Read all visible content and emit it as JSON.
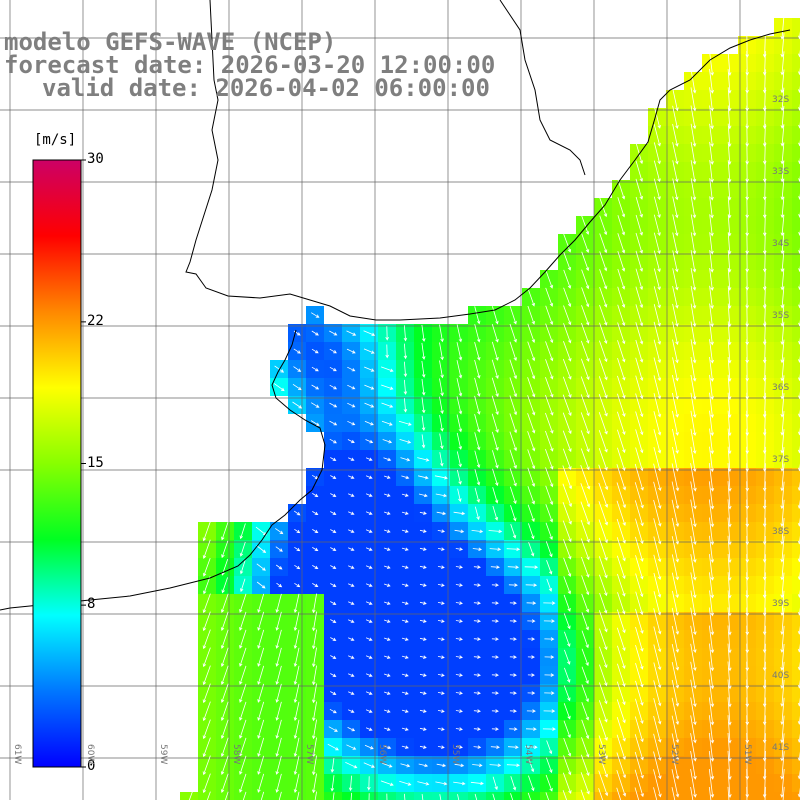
{
  "titles": {
    "line1": "modelo GEFS-WAVE (NCEP)",
    "line2": "forecast date: 2026-03-20 12:00:00",
    "line3": "valid date: 2026-04-02 06:00:00"
  },
  "colorbar": {
    "unit": "[m/s]",
    "ticks": [
      {
        "label": "30",
        "value": 30
      },
      {
        "label": "22",
        "value": 22
      },
      {
        "label": "15",
        "value": 15
      },
      {
        "label": "8",
        "value": 8
      },
      {
        "label": "0",
        "value": 0
      }
    ],
    "min": 0,
    "max": 30,
    "colors": [
      "#0000ff",
      "#0077ff",
      "#00ffff",
      "#00ff22",
      "#88ff00",
      "#ffff00",
      "#ff8800",
      "#ff0000",
      "#cc0066"
    ]
  },
  "lon_labels": [
    "61W",
    "60W",
    "59W",
    "58W",
    "57W",
    "56W",
    "55W",
    "54W",
    "53W",
    "52W",
    "51W"
  ],
  "lat_labels": [
    "32S",
    "33S",
    "34S",
    "35S",
    "36S",
    "37S",
    "38S",
    "39S",
    "40S",
    "41S"
  ],
  "colors": {
    "title": "#7f7f7f",
    "grid": "#666666",
    "coast": "#000000",
    "arrow": "#ffffff"
  }
}
